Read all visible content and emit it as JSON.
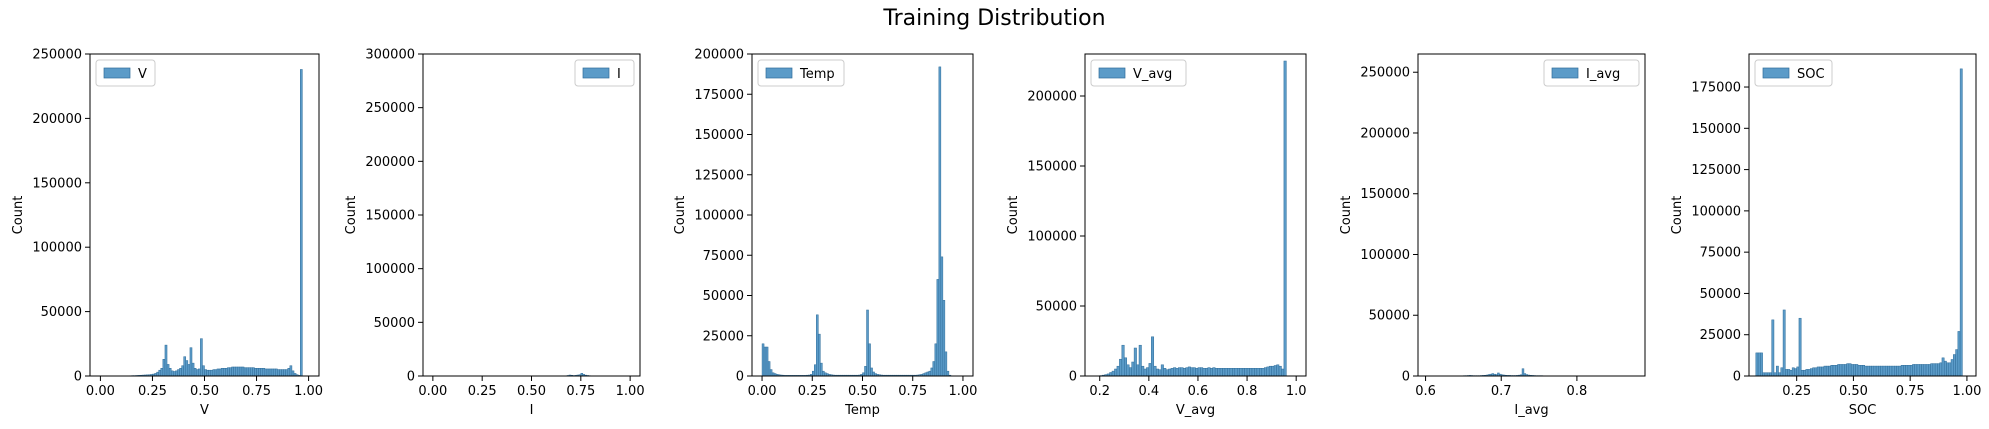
{
  "title": "Training Distribution",
  "colors": {
    "bar_fill": "#5b9bc8",
    "bar_edge": "#2f6d9a",
    "axis": "#000000"
  },
  "chart_data": [
    {
      "type": "bar",
      "legend": "V",
      "legend_loc": "upper-left",
      "xlabel": "V",
      "ylabel": "Count",
      "xlim": [
        -0.05,
        1.05
      ],
      "ylim": [
        0,
        250000
      ],
      "xticks": [
        0.0,
        0.25,
        0.5,
        0.75,
        1.0
      ],
      "xtick_labels": [
        "0.00",
        "0.25",
        "0.50",
        "0.75",
        "1.00"
      ],
      "yticks": [
        0,
        50000,
        100000,
        150000,
        200000,
        250000
      ],
      "ytick_labels": [
        "0",
        "50000",
        "100000",
        "150000",
        "200000",
        "250000"
      ],
      "bin_start": 0.0,
      "bin_width": 0.01,
      "counts": [
        0,
        0,
        0,
        0,
        0,
        0,
        0,
        0,
        0,
        0,
        0,
        0,
        0,
        0,
        200,
        300,
        300,
        400,
        500,
        600,
        700,
        800,
        900,
        1000,
        1200,
        1500,
        2000,
        3000,
        4500,
        6000,
        13000,
        24000,
        9000,
        6000,
        4000,
        3500,
        4000,
        5000,
        6000,
        8000,
        15000,
        12000,
        9000,
        22000,
        10000,
        6000,
        5000,
        5500,
        29000,
        8000,
        5000,
        4500,
        4500,
        4500,
        5000,
        5000,
        5500,
        5500,
        6000,
        6000,
        6000,
        6500,
        6500,
        7000,
        7000,
        7000,
        7000,
        7000,
        7000,
        6500,
        6500,
        6500,
        6500,
        6500,
        6000,
        6000,
        6000,
        6000,
        6000,
        5500,
        5500,
        5500,
        5500,
        5500,
        5500,
        5000,
        5000,
        5000,
        5000,
        5000,
        6000,
        8000,
        4000,
        2000,
        1000,
        500,
        238000,
        0,
        0,
        0
      ]
    },
    {
      "type": "bar",
      "legend": "I",
      "legend_loc": "upper-right",
      "xlabel": "I",
      "ylabel": "Count",
      "xlim": [
        -0.05,
        1.05
      ],
      "ylim": [
        0,
        300000
      ],
      "xticks": [
        0.0,
        0.25,
        0.5,
        0.75,
        1.0
      ],
      "xtick_labels": [
        "0.00",
        "0.25",
        "0.50",
        "0.75",
        "1.00"
      ],
      "yticks": [
        0,
        50000,
        100000,
        150000,
        200000,
        250000,
        300000
      ],
      "ytick_labels": [
        "0",
        "50000",
        "100000",
        "150000",
        "200000",
        "250000",
        "300000"
      ],
      "bin_start": 0.0,
      "bin_width": 0.01,
      "counts": [
        0,
        0,
        0,
        0,
        0,
        0,
        0,
        0,
        0,
        0,
        0,
        0,
        0,
        0,
        0,
        0,
        0,
        0,
        0,
        0,
        0,
        0,
        0,
        0,
        0,
        0,
        0,
        0,
        0,
        0,
        0,
        0,
        0,
        0,
        0,
        0,
        0,
        0,
        0,
        0,
        0,
        0,
        0,
        0,
        0,
        0,
        0,
        0,
        0,
        0,
        0,
        0,
        0,
        0,
        0,
        0,
        0,
        0,
        0,
        0,
        0,
        0,
        0,
        0,
        0,
        0,
        0,
        200,
        500,
        900,
        700,
        400,
        600,
        900,
        1200,
        2500,
        1500,
        800,
        500,
        300,
        200,
        200,
        100,
        100,
        100,
        100,
        100,
        100,
        100,
        100,
        0,
        0,
        0,
        0,
        0,
        0,
        0,
        0,
        0,
        0
      ]
    },
    {
      "type": "bar",
      "legend": "Temp",
      "legend_loc": "upper-left",
      "xlabel": "Temp",
      "ylabel": "Count",
      "xlim": [
        -0.05,
        1.05
      ],
      "ylim": [
        0,
        200000
      ],
      "xticks": [
        0.0,
        0.25,
        0.5,
        0.75,
        1.0
      ],
      "xtick_labels": [
        "0.00",
        "0.25",
        "0.50",
        "0.75",
        "1.00"
      ],
      "yticks": [
        0,
        25000,
        50000,
        75000,
        100000,
        125000,
        150000,
        175000,
        200000
      ],
      "ytick_labels": [
        "0",
        "25000",
        "50000",
        "75000",
        "100000",
        "125000",
        "150000",
        "175000",
        "200000"
      ],
      "bin_start": 0.0,
      "bin_width": 0.01,
      "counts": [
        20000,
        18000,
        18000,
        9000,
        4000,
        2000,
        1500,
        1000,
        800,
        600,
        500,
        400,
        400,
        400,
        400,
        400,
        400,
        400,
        400,
        400,
        400,
        400,
        500,
        600,
        1000,
        3000,
        7000,
        38000,
        26000,
        8000,
        3000,
        2000,
        1500,
        1000,
        800,
        600,
        500,
        500,
        500,
        500,
        500,
        500,
        500,
        500,
        500,
        500,
        500,
        500,
        600,
        1000,
        2000,
        6000,
        41000,
        20000,
        5000,
        2500,
        1500,
        1000,
        800,
        600,
        500,
        500,
        500,
        500,
        500,
        500,
        500,
        500,
        500,
        500,
        500,
        500,
        500,
        500,
        500,
        500,
        500,
        600,
        800,
        1000,
        1500,
        2000,
        2500,
        3000,
        5000,
        9000,
        20000,
        60000,
        192000,
        74000,
        47000,
        15000,
        3000,
        500,
        0,
        0,
        0,
        0,
        0,
        0
      ]
    },
    {
      "type": "bar",
      "legend": "V_avg",
      "legend_loc": "upper-left",
      "xlabel": "V_avg",
      "ylabel": "Count",
      "xlim": [
        0.14,
        1.04
      ],
      "ylim": [
        0,
        230000
      ],
      "xticks": [
        0.2,
        0.4,
        0.6,
        0.8,
        1.0
      ],
      "xtick_labels": [
        "0.2",
        "0.4",
        "0.6",
        "0.8",
        "1.0"
      ],
      "yticks": [
        0,
        50000,
        100000,
        150000,
        200000
      ],
      "ytick_labels": [
        "0",
        "50000",
        "100000",
        "150000",
        "200000"
      ],
      "bin_start": 0.2,
      "bin_width": 0.01,
      "counts": [
        300,
        600,
        1000,
        1500,
        2500,
        3500,
        5000,
        7000,
        12000,
        22000,
        13000,
        8000,
        6000,
        10000,
        20000,
        8000,
        22000,
        7000,
        5000,
        6000,
        9000,
        28000,
        7000,
        5000,
        4500,
        8000,
        5500,
        4500,
        5000,
        5500,
        6000,
        5500,
        6000,
        6000,
        5500,
        6000,
        6500,
        6000,
        6000,
        5500,
        6000,
        6000,
        5500,
        5500,
        6000,
        5500,
        6000,
        5500,
        5500,
        5500,
        5500,
        5500,
        5500,
        5500,
        5500,
        5500,
        5500,
        5500,
        5500,
        5500,
        5500,
        5500,
        5500,
        5500,
        5500,
        5500,
        5500,
        6000,
        6500,
        7000,
        7000,
        7500,
        8000,
        7000,
        5000,
        225000,
        0,
        0,
        0,
        0
      ]
    },
    {
      "type": "bar",
      "legend": "I_avg",
      "legend_loc": "upper-right",
      "xlabel": "I_avg",
      "ylabel": "Count",
      "xlim": [
        0.59,
        0.89
      ],
      "ylim": [
        0,
        265000
      ],
      "xticks": [
        0.6,
        0.7,
        0.8
      ],
      "xtick_labels": [
        "0.6",
        "0.7",
        "0.8"
      ],
      "yticks": [
        0,
        50000,
        100000,
        150000,
        200000,
        250000
      ],
      "ytick_labels": [
        "0",
        "50000",
        "100000",
        "150000",
        "200000",
        "250000"
      ],
      "bin_start": 0.62,
      "bin_width": 0.0025,
      "counts": [
        100,
        100,
        100,
        100,
        100,
        100,
        100,
        100,
        100,
        100,
        200,
        200,
        300,
        300,
        400,
        500,
        400,
        300,
        300,
        300,
        300,
        400,
        500,
        600,
        800,
        1200,
        1500,
        2000,
        1500,
        1200,
        2500,
        1500,
        1000,
        800,
        600,
        500,
        500,
        400,
        400,
        400,
        500,
        700,
        1000,
        6000,
        2000,
        1200,
        800,
        600,
        500,
        400,
        300,
        300,
        300,
        300,
        200,
        200,
        200,
        200,
        200,
        200,
        200,
        200,
        200,
        200,
        200,
        200,
        200,
        200,
        200,
        200,
        200,
        200,
        200,
        200,
        200,
        200,
        200,
        200,
        200,
        200,
        200,
        200,
        200,
        200,
        200,
        200,
        200,
        200,
        200,
        200,
        200,
        200,
        200,
        200,
        200,
        200,
        200,
        200,
        200,
        200,
        200,
        200,
        200,
        200,
        200
      ]
    },
    {
      "type": "bar",
      "legend": "SOC",
      "legend_loc": "upper-left",
      "xlabel": "SOC",
      "ylabel": "Count",
      "xlim": [
        0.04,
        1.04
      ],
      "ylim": [
        0,
        195000
      ],
      "xticks": [
        0.25,
        0.5,
        0.75,
        1.0
      ],
      "xtick_labels": [
        "0.25",
        "0.50",
        "0.75",
        "1.00"
      ],
      "yticks": [
        0,
        25000,
        50000,
        75000,
        100000,
        125000,
        150000,
        175000
      ],
      "ytick_labels": [
        "0",
        "25000",
        "50000",
        "75000",
        "100000",
        "125000",
        "150000",
        "175000"
      ],
      "bin_start": 0.07,
      "bin_width": 0.01,
      "counts": [
        14000,
        14000,
        14000,
        2000,
        2000,
        2000,
        2000,
        34000,
        2000,
        6000,
        2000,
        5000,
        40000,
        4000,
        4000,
        3500,
        5000,
        4500,
        5500,
        35000,
        3500,
        3500,
        4000,
        4000,
        4500,
        5000,
        5000,
        5500,
        5500,
        5500,
        6000,
        6000,
        6000,
        6500,
        6500,
        6500,
        7000,
        7000,
        7000,
        7000,
        7500,
        7500,
        7000,
        7000,
        7000,
        6500,
        6500,
        6500,
        6000,
        6000,
        6000,
        6000,
        6000,
        6000,
        6000,
        6000,
        6000,
        6000,
        6000,
        6000,
        6000,
        6000,
        6000,
        6000,
        6500,
        6500,
        6500,
        6500,
        6500,
        7000,
        7000,
        7000,
        7000,
        7000,
        7000,
        7000,
        7000,
        7500,
        7500,
        7500,
        7500,
        8000,
        11000,
        9000,
        8000,
        8000,
        10000,
        13000,
        16000,
        27000,
        186000,
        0
      ]
    }
  ]
}
